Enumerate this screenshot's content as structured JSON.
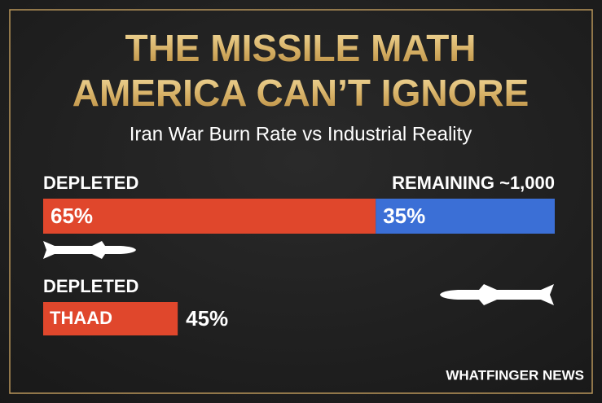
{
  "chart_data": {
    "type": "stacked-bar",
    "title": [
      "THE MISSILE MATH",
      "AMERICA CAN’T IGNORE"
    ],
    "subtitle": "Iran War Burn Rate vs Industrial Reality",
    "xlim": [
      0,
      100
    ],
    "bar1": {
      "left_label": "DEPLETED",
      "right_label": "REMAINING ~1,000",
      "segments": [
        {
          "value": 65,
          "value_label": "65%",
          "color": "#e0472c"
        },
        {
          "value": 35,
          "value_label": "35%",
          "color": "#3b6fd6"
        }
      ]
    },
    "bar2": {
      "label": "DEPLETED",
      "bar_text": "THAAD",
      "value": 45,
      "value_label": "45%",
      "color": "#e0472c"
    },
    "footer": "WHATFINGER NEWS"
  }
}
